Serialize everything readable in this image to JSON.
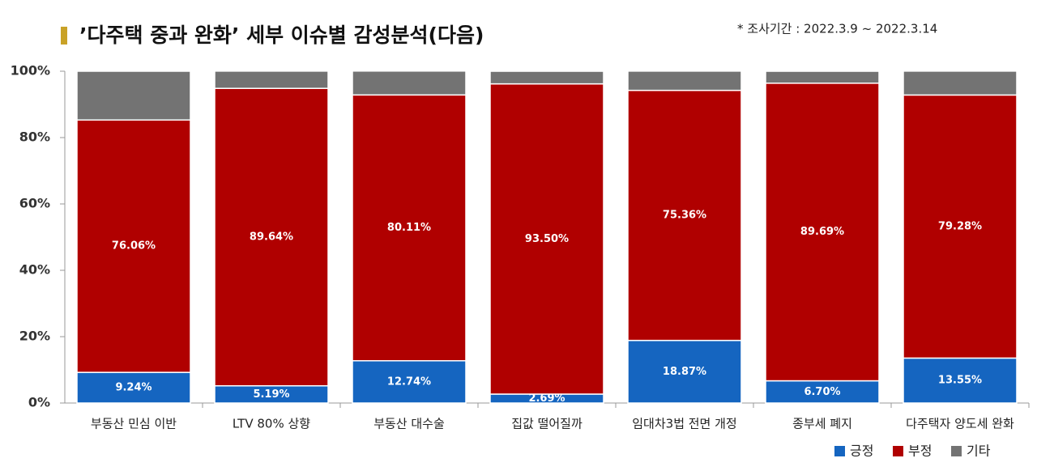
{
  "chart_data": {
    "type": "stacked_bar",
    "title": "’다주택 중과 완화’ 세부 이슈별 감성분석(다음)",
    "subtitle": "* 조사기간 : 2022.3.9 ~ 2022.3.14",
    "categories": [
      "부동산 민심 이반",
      "LTV 80% 상향",
      "부동산 대수술",
      "집값 떨어질까",
      "임대차3법 전면 개정",
      "종부세 폐지",
      "다주택자 양도세 완화"
    ],
    "series": [
      {
        "name": "긍정",
        "color": "#1565c0",
        "values": [
          9.24,
          5.19,
          12.74,
          2.69,
          18.87,
          6.7,
          13.55
        ],
        "value_labels": [
          "9.24%",
          "5.19%",
          "12.74%",
          "2.69%",
          "18.87%",
          "6.70%",
          "13.55%"
        ]
      },
      {
        "name": "부정",
        "color": "#b00000",
        "values": [
          76.06,
          89.64,
          80.11,
          93.5,
          75.36,
          89.69,
          79.28
        ],
        "value_labels": [
          "76.06%",
          "89.64%",
          "80.11%",
          "93.50%",
          "75.36%",
          "89.69%",
          "79.28%"
        ]
      },
      {
        "name": "기타",
        "color": "#737373",
        "values": [
          14.7,
          5.2,
          7.2,
          3.8,
          5.8,
          3.6,
          7.2
        ]
      }
    ],
    "ylim": [
      0,
      100
    ],
    "yticks": [
      {
        "value": 0,
        "label": "0%"
      },
      {
        "value": 20,
        "label": "20%"
      },
      {
        "value": 40,
        "label": "40%"
      },
      {
        "value": 60,
        "label": "60%"
      },
      {
        "value": 80,
        "label": "80%"
      },
      {
        "value": 100,
        "label": "100%"
      }
    ],
    "legend": "bottom-right"
  }
}
